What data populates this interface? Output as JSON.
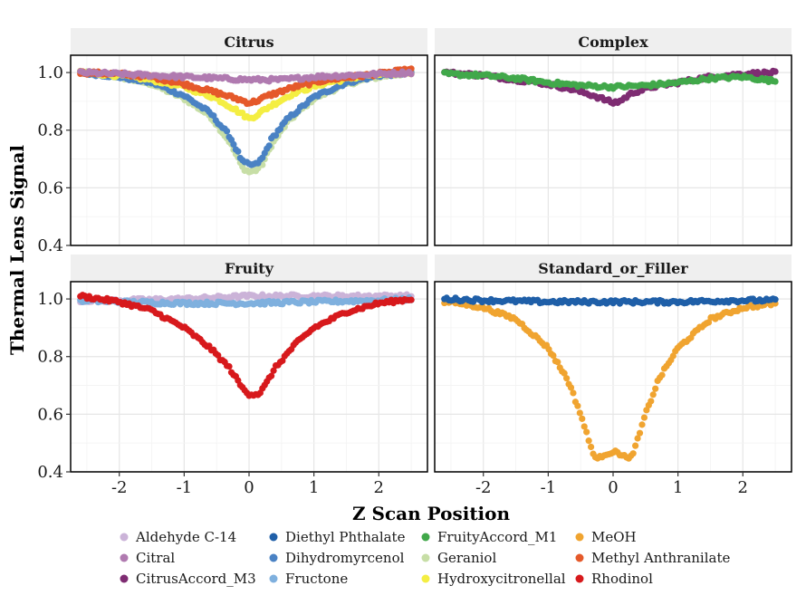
{
  "chart_data": {
    "type": "scatter",
    "xlabel": "Z Scan Position",
    "ylabel": "Thermal Lens Signal",
    "xlim": [
      -2.75,
      2.75
    ],
    "ylim": [
      0.4,
      1.06
    ],
    "xticks": [
      -2,
      -1,
      0,
      1,
      2
    ],
    "xtick_labels": [
      "-2",
      "-1",
      "0",
      "1",
      "2"
    ],
    "yticks": [
      0.4,
      0.6,
      0.8,
      1.0
    ],
    "ytick_labels": [
      "0.4",
      "0.6",
      "0.8",
      "1.0"
    ],
    "x_range": [
      -2.6,
      2.5
    ],
    "grid": true,
    "legend_position": "bottom",
    "legend": [
      {
        "name": "Aldehyde C-14",
        "color": "#cbb3d8"
      },
      {
        "name": "Citral",
        "color": "#b07ab0"
      },
      {
        "name": "CitrusAccord_M3",
        "color": "#7e2c72"
      },
      {
        "name": "Diethyl Phthalate",
        "color": "#1f5fa8"
      },
      {
        "name": "Dihydromyrcenol",
        "color": "#4a82c4"
      },
      {
        "name": "Fructone",
        "color": "#7fb0de"
      },
      {
        "name": "FruityAccord_M1",
        "color": "#41a84a"
      },
      {
        "name": "Geraniol",
        "color": "#c7dea6"
      },
      {
        "name": "Hydroxycitronellal",
        "color": "#f4ee42"
      },
      {
        "name": "MeOH",
        "color": "#f0a430"
      },
      {
        "name": "Methyl Anthranilate",
        "color": "#e5592a"
      },
      {
        "name": "Rhodinol",
        "color": "#d7191c"
      }
    ],
    "panels": [
      {
        "title": "Citrus",
        "series": [
          {
            "name": "Geraniol",
            "profile": [
              [
                -2.6,
                1.0
              ],
              [
                -2.0,
                0.985
              ],
              [
                -1.5,
                0.96
              ],
              [
                -1.0,
                0.91
              ],
              [
                -0.6,
                0.85
              ],
              [
                -0.3,
                0.76
              ],
              [
                -0.1,
                0.67
              ],
              [
                0.0,
                0.655
              ],
              [
                0.1,
                0.66
              ],
              [
                0.2,
                0.68
              ],
              [
                0.35,
                0.75
              ],
              [
                0.6,
                0.83
              ],
              [
                1.0,
                0.91
              ],
              [
                1.5,
                0.96
              ],
              [
                2.0,
                0.985
              ],
              [
                2.5,
                1.0
              ]
            ]
          },
          {
            "name": "Dihydromyrcenol",
            "profile": [
              [
                -2.6,
                1.0
              ],
              [
                -2.0,
                0.985
              ],
              [
                -1.5,
                0.965
              ],
              [
                -1.0,
                0.92
              ],
              [
                -0.6,
                0.86
              ],
              [
                -0.3,
                0.78
              ],
              [
                -0.1,
                0.69
              ],
              [
                0.0,
                0.68
              ],
              [
                0.1,
                0.68
              ],
              [
                0.2,
                0.7
              ],
              [
                0.35,
                0.77
              ],
              [
                0.6,
                0.84
              ],
              [
                1.0,
                0.915
              ],
              [
                1.5,
                0.965
              ],
              [
                2.0,
                0.99
              ],
              [
                2.5,
                1.0
              ]
            ]
          },
          {
            "name": "Hydroxycitronellal",
            "profile": [
              [
                -2.6,
                1.0
              ],
              [
                -2.0,
                0.99
              ],
              [
                -1.5,
                0.975
              ],
              [
                -1.0,
                0.95
              ],
              [
                -0.5,
                0.91
              ],
              [
                -0.2,
                0.87
              ],
              [
                0.0,
                0.84
              ],
              [
                0.1,
                0.85
              ],
              [
                0.3,
                0.88
              ],
              [
                0.7,
                0.93
              ],
              [
                1.2,
                0.965
              ],
              [
                1.8,
                0.99
              ],
              [
                2.5,
                1.0
              ]
            ]
          },
          {
            "name": "Methyl Anthranilate",
            "profile": [
              [
                -2.6,
                1.0
              ],
              [
                -2.0,
                0.995
              ],
              [
                -1.5,
                0.985
              ],
              [
                -1.0,
                0.96
              ],
              [
                -0.5,
                0.93
              ],
              [
                -0.2,
                0.91
              ],
              [
                0.0,
                0.895
              ],
              [
                0.1,
                0.9
              ],
              [
                0.3,
                0.92
              ],
              [
                0.7,
                0.95
              ],
              [
                1.2,
                0.975
              ],
              [
                1.8,
                0.99
              ],
              [
                2.5,
                1.01
              ]
            ]
          },
          {
            "name": "Citral",
            "profile": [
              [
                -2.6,
                1.0
              ],
              [
                -2.0,
                0.995
              ],
              [
                -1.5,
                0.99
              ],
              [
                -1.0,
                0.985
              ],
              [
                -0.5,
                0.98
              ],
              [
                0.0,
                0.975
              ],
              [
                0.5,
                0.975
              ],
              [
                1.0,
                0.985
              ],
              [
                1.5,
                0.99
              ],
              [
                2.0,
                0.995
              ],
              [
                2.5,
                1.0
              ]
            ]
          }
        ]
      },
      {
        "title": "Complex",
        "series": [
          {
            "name": "CitrusAccord_M3",
            "profile": [
              [
                -2.6,
                1.0
              ],
              [
                -2.0,
                0.99
              ],
              [
                -1.5,
                0.975
              ],
              [
                -1.0,
                0.96
              ],
              [
                -0.6,
                0.94
              ],
              [
                -0.3,
                0.92
              ],
              [
                0.0,
                0.895
              ],
              [
                0.1,
                0.9
              ],
              [
                0.3,
                0.93
              ],
              [
                0.6,
                0.95
              ],
              [
                1.0,
                0.965
              ],
              [
                1.5,
                0.985
              ],
              [
                2.0,
                0.995
              ],
              [
                2.5,
                1.0
              ]
            ]
          },
          {
            "name": "FruityAccord_M1",
            "profile": [
              [
                -2.6,
                0.995
              ],
              [
                -2.0,
                0.99
              ],
              [
                -1.5,
                0.98
              ],
              [
                -1.0,
                0.965
              ],
              [
                -0.5,
                0.955
              ],
              [
                0.0,
                0.95
              ],
              [
                0.5,
                0.955
              ],
              [
                1.0,
                0.965
              ],
              [
                1.5,
                0.98
              ],
              [
                2.0,
                0.985
              ],
              [
                2.5,
                0.97
              ]
            ]
          }
        ]
      },
      {
        "title": "Fruity",
        "series": [
          {
            "name": "Aldehyde C-14",
            "profile": [
              [
                -2.6,
                0.995
              ],
              [
                -2.0,
                0.995
              ],
              [
                -1.0,
                1.0
              ],
              [
                0.0,
                1.01
              ],
              [
                1.0,
                1.01
              ],
              [
                2.0,
                1.01
              ],
              [
                2.5,
                1.01
              ]
            ]
          },
          {
            "name": "Fructone",
            "profile": [
              [
                -2.6,
                0.995
              ],
              [
                -2.0,
                0.99
              ],
              [
                -1.0,
                0.985
              ],
              [
                0.0,
                0.985
              ],
              [
                1.0,
                0.99
              ],
              [
                2.0,
                0.995
              ],
              [
                2.5,
                1.0
              ]
            ]
          },
          {
            "name": "Rhodinol",
            "profile": [
              [
                -2.6,
                1.01
              ],
              [
                -2.0,
                0.99
              ],
              [
                -1.5,
                0.96
              ],
              [
                -1.0,
                0.9
              ],
              [
                -0.6,
                0.83
              ],
              [
                -0.3,
                0.76
              ],
              [
                -0.1,
                0.69
              ],
              [
                0.0,
                0.67
              ],
              [
                0.15,
                0.67
              ],
              [
                0.25,
                0.7
              ],
              [
                0.4,
                0.76
              ],
              [
                0.7,
                0.84
              ],
              [
                1.0,
                0.9
              ],
              [
                1.5,
                0.955
              ],
              [
                2.0,
                0.985
              ],
              [
                2.5,
                1.0
              ]
            ]
          }
        ]
      },
      {
        "title": "Standard_or_Filler",
        "series": [
          {
            "name": "MeOH",
            "profile": [
              [
                -2.5,
                0.99
              ],
              [
                -2.0,
                0.97
              ],
              [
                -1.5,
                0.93
              ],
              [
                -1.0,
                0.83
              ],
              [
                -0.7,
                0.72
              ],
              [
                -0.5,
                0.6
              ],
              [
                -0.35,
                0.49
              ],
              [
                -0.25,
                0.44
              ],
              [
                -0.15,
                0.46
              ],
              [
                0.0,
                0.47
              ],
              [
                0.15,
                0.46
              ],
              [
                0.25,
                0.44
              ],
              [
                0.35,
                0.49
              ],
              [
                0.5,
                0.6
              ],
              [
                0.7,
                0.72
              ],
              [
                1.0,
                0.83
              ],
              [
                1.5,
                0.93
              ],
              [
                2.0,
                0.97
              ],
              [
                2.5,
                0.985
              ]
            ]
          },
          {
            "name": "Diethyl Phthalate",
            "profile": [
              [
                -2.6,
                1.0
              ],
              [
                -2.0,
                0.995
              ],
              [
                -1.0,
                0.99
              ],
              [
                0.0,
                0.99
              ],
              [
                1.0,
                0.99
              ],
              [
                2.0,
                0.995
              ],
              [
                2.5,
                0.995
              ]
            ]
          }
        ]
      }
    ]
  }
}
